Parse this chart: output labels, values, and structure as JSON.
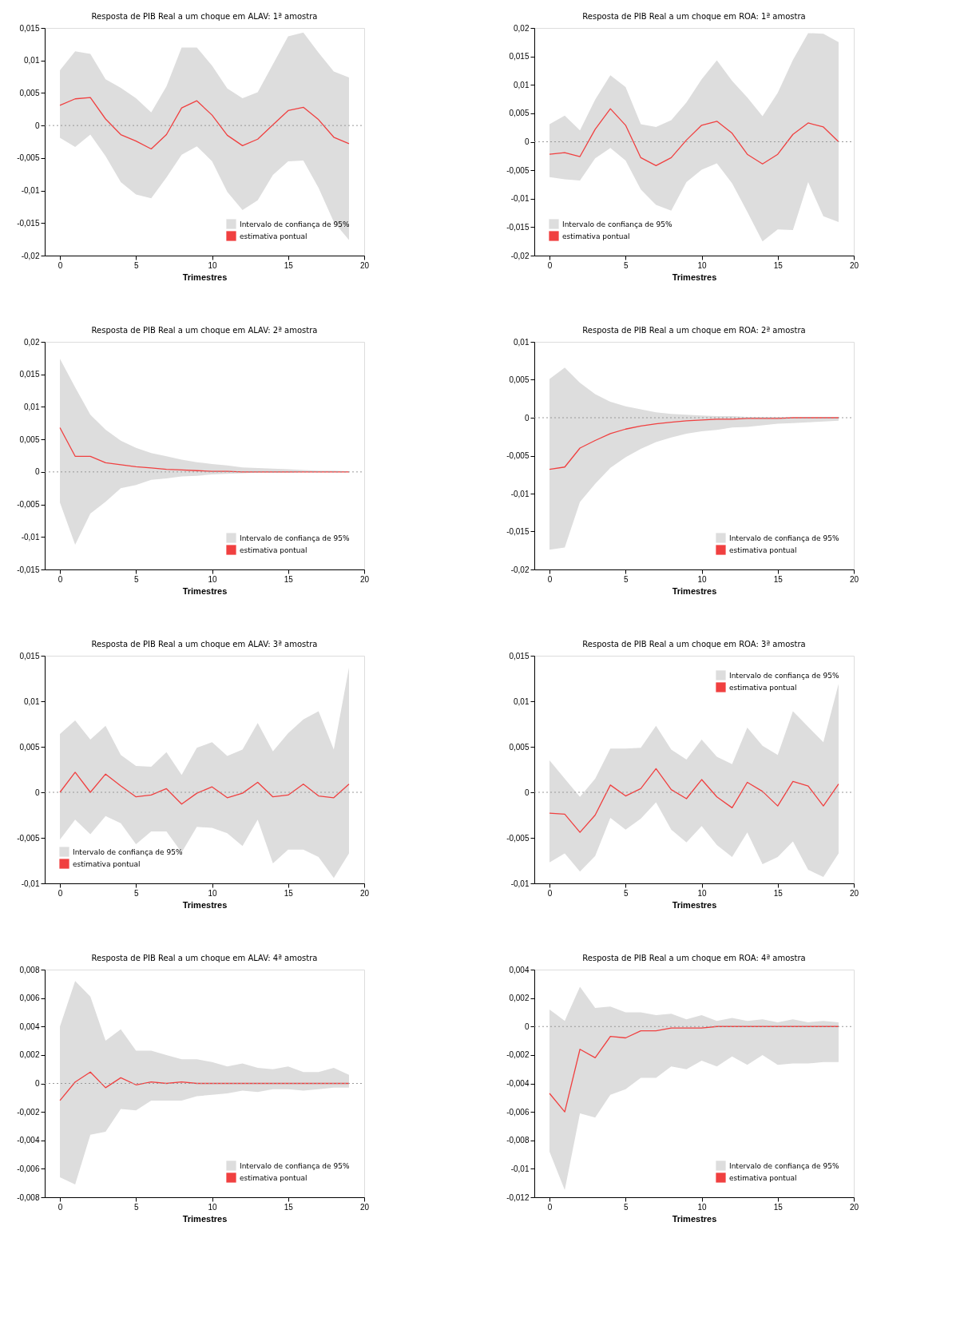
{
  "chart_data": [
    {
      "type": "line",
      "title": "Resposta de PIB Real a um choque em ALAV: 1ª amostra",
      "xlabel": "Trimestres",
      "legend": "bottom right",
      "grid": false,
      "x": [
        0,
        1,
        2,
        3,
        4,
        5,
        6,
        7,
        8,
        9,
        10,
        11,
        12,
        13,
        14,
        15,
        16,
        17,
        18,
        19
      ],
      "xlim": [
        -1,
        20
      ],
      "xticks": [
        0,
        5,
        10,
        15,
        20
      ],
      "ylim": [
        -0.02,
        0.015
      ],
      "yticks": [
        {
          "value": -0.02,
          "label": "-0,02"
        },
        {
          "value": -0.015,
          "label": "-0,015"
        },
        {
          "value": -0.01,
          "label": "-0,01"
        },
        {
          "value": -0.005,
          "label": "-0,005"
        },
        0,
        {
          "value": 0.005,
          "label": "0,005"
        },
        {
          "value": 0.01,
          "label": "0,01"
        },
        {
          "value": 0.015,
          "label": "0,015"
        }
      ],
      "ref_lines": [
        {
          "axis": "y",
          "value": 0,
          "color": "#999999",
          "line_style": "dotted"
        }
      ],
      "series": [
        {
          "name": "Intervalo de confiança de 95%",
          "type": "area",
          "color": "#dddddd",
          "values": [
            null,
            null,
            null,
            null,
            null,
            null,
            null,
            null,
            null,
            null,
            null,
            null,
            null,
            null,
            null,
            null,
            null,
            null,
            null,
            null
          ],
          "lower": [
            -0.0019,
            -0.0033,
            -0.0014,
            -0.0047,
            -0.0087,
            -0.0106,
            -0.0112,
            -0.008,
            -0.0045,
            -0.0032,
            -0.0055,
            -0.0102,
            -0.013,
            -0.0115,
            -0.0076,
            -0.0055,
            -0.0054,
            -0.0096,
            -0.0148,
            -0.0176
          ],
          "upper": [
            0.0085,
            0.0114,
            0.011,
            0.0071,
            0.0058,
            0.0042,
            0.002,
            0.006,
            0.012,
            0.012,
            0.0092,
            0.0057,
            0.0042,
            0.0051,
            0.0094,
            0.0137,
            0.0143,
            0.0112,
            0.0083,
            0.0074
          ]
        },
        {
          "name": "estimativa pontual",
          "color": "#f04040",
          "values": [
            0.0031,
            0.0041,
            0.0043,
            0.001,
            -0.0014,
            -0.0024,
            -0.0036,
            -0.0014,
            0.0027,
            0.0038,
            0.0016,
            -0.0015,
            -0.0031,
            -0.0021,
            0.0001,
            0.0023,
            0.0028,
            0.0009,
            -0.0018,
            -0.0028
          ]
        }
      ]
    },
    {
      "type": "line",
      "title": "Resposta de PIB Real a um choque em ROA: 1ª amostra",
      "xlabel": "Trimestres",
      "legend": "bottom left",
      "grid": false,
      "x": [
        0,
        1,
        2,
        3,
        4,
        5,
        6,
        7,
        8,
        9,
        10,
        11,
        12,
        13,
        14,
        15,
        16,
        17,
        18,
        19
      ],
      "xlim": [
        -1,
        20
      ],
      "xticks": [
        0,
        5,
        10,
        15,
        20
      ],
      "ylim": [
        -0.02,
        0.02
      ],
      "yticks": [
        {
          "value": -0.02,
          "label": "-0,02"
        },
        {
          "value": -0.015,
          "label": "-0,015"
        },
        {
          "value": -0.01,
          "label": "-0,01"
        },
        {
          "value": -0.005,
          "label": "-0,005"
        },
        0,
        {
          "value": 0.005,
          "label": "0,005"
        },
        {
          "value": 0.01,
          "label": "0,01"
        },
        {
          "value": 0.015,
          "label": "0,015"
        },
        {
          "value": 0.02,
          "label": "0,02"
        }
      ],
      "ref_lines": [
        {
          "axis": "y",
          "value": 0,
          "color": "#999999",
          "line_style": "dotted"
        }
      ],
      "series": [
        {
          "name": "Intervalo de confiança de 95%",
          "type": "area",
          "color": "#dddddd",
          "values": [
            null,
            null,
            null,
            null,
            null,
            null,
            null,
            null,
            null,
            null,
            null,
            null,
            null,
            null,
            null,
            null,
            null,
            null,
            null,
            null
          ],
          "lower": [
            -0.0062,
            -0.0066,
            -0.0068,
            -0.0029,
            -0.0011,
            -0.0033,
            -0.0084,
            -0.0111,
            -0.0121,
            -0.0071,
            -0.0049,
            -0.0038,
            -0.0073,
            -0.0123,
            -0.0175,
            -0.0154,
            -0.0155,
            -0.0071,
            -0.0131,
            -0.0141
          ],
          "upper": [
            0.0031,
            0.0046,
            0.002,
            0.0074,
            0.0117,
            0.0096,
            0.0031,
            0.0026,
            0.0038,
            0.0069,
            0.011,
            0.0143,
            0.0107,
            0.0078,
            0.0045,
            0.0086,
            0.0144,
            0.0191,
            0.019,
            0.0175
          ]
        },
        {
          "name": "estimativa pontual",
          "color": "#f04040",
          "values": [
            -0.0022,
            -0.0019,
            -0.0026,
            0.0022,
            0.0058,
            0.0029,
            -0.0028,
            -0.0042,
            -0.0028,
            0.0003,
            0.0029,
            0.0036,
            0.0015,
            -0.0022,
            -0.0039,
            -0.0022,
            0.0013,
            0.0033,
            0.0026,
            0
          ]
        }
      ]
    },
    {
      "type": "line",
      "title": "Resposta de PIB Real a um choque em ALAV: 2ª amostra",
      "xlabel": "Trimestres",
      "legend": "bottom right",
      "grid": false,
      "x": [
        0,
        1,
        2,
        3,
        4,
        5,
        6,
        7,
        8,
        9,
        10,
        11,
        12,
        13,
        14,
        15,
        16,
        17,
        18,
        19
      ],
      "xlim": [
        -1,
        20
      ],
      "xticks": [
        0,
        5,
        10,
        15,
        20
      ],
      "ylim": [
        -0.015,
        0.02
      ],
      "yticks": [
        {
          "value": -0.015,
          "label": "-0,015"
        },
        {
          "value": -0.01,
          "label": "-0,01"
        },
        {
          "value": -0.005,
          "label": "-0,005"
        },
        0,
        {
          "value": 0.005,
          "label": "0,005"
        },
        {
          "value": 0.01,
          "label": "0,01"
        },
        {
          "value": 0.015,
          "label": "0,015"
        },
        {
          "value": 0.02,
          "label": "0,02"
        }
      ],
      "ref_lines": [
        {
          "axis": "y",
          "value": 0,
          "color": "#999999",
          "line_style": "dotted"
        }
      ],
      "series": [
        {
          "name": "Intervalo de confiança de 95%",
          "type": "area",
          "color": "#dddddd",
          "values": [
            null,
            null,
            null,
            null,
            null,
            null,
            null,
            null,
            null,
            null,
            null,
            null,
            null,
            null,
            null,
            null,
            null,
            null,
            null,
            null
          ],
          "lower": [
            -0.0047,
            -0.0112,
            -0.0064,
            -0.0046,
            -0.0025,
            -0.002,
            -0.0012,
            -0.001,
            -0.0007,
            -0.0006,
            -0.0004,
            -0.0003,
            -0.0002,
            -0.0001,
            -0.0001,
            -0.0001,
            0,
            0,
            0,
            0
          ],
          "upper": [
            0.0174,
            0.013,
            0.0088,
            0.0065,
            0.0048,
            0.0037,
            0.0029,
            0.0024,
            0.0019,
            0.0015,
            0.0012,
            0.001,
            0.0007,
            0.0006,
            0.0005,
            0.0004,
            0.0003,
            0.0002,
            0.0002,
            0.0001
          ]
        },
        {
          "name": "estimativa pontual",
          "color": "#f04040",
          "values": [
            0.0068,
            0.0024,
            0.0024,
            0.0014,
            0.0011,
            0.0008,
            0.0006,
            0.0004,
            0.0003,
            0.0002,
            0.0001,
            0.0001,
            0,
            0,
            0,
            0,
            0,
            0,
            0,
            0
          ]
        }
      ]
    },
    {
      "type": "line",
      "title": "Resposta de PIB Real a um choque em ROA: 2ª amostra",
      "xlabel": "Trimestres",
      "legend": "bottom right",
      "grid": false,
      "x": [
        0,
        1,
        2,
        3,
        4,
        5,
        6,
        7,
        8,
        9,
        10,
        11,
        12,
        13,
        14,
        15,
        16,
        17,
        18,
        19
      ],
      "xlim": [
        -1,
        20
      ],
      "xticks": [
        0,
        5,
        10,
        15,
        20
      ],
      "ylim": [
        -0.02,
        0.01
      ],
      "yticks": [
        {
          "value": -0.02,
          "label": "-0,02"
        },
        {
          "value": -0.015,
          "label": "-0,015"
        },
        {
          "value": -0.01,
          "label": "-0,01"
        },
        {
          "value": -0.005,
          "label": "-0,005"
        },
        0,
        {
          "value": 0.005,
          "label": "0,005"
        },
        {
          "value": 0.01,
          "label": "0,01"
        }
      ],
      "ref_lines": [
        {
          "axis": "y",
          "value": 0,
          "color": "#999999",
          "line_style": "dotted"
        }
      ],
      "series": [
        {
          "name": "Intervalo de confiança de 95%",
          "type": "area",
          "color": "#dddddd",
          "values": [
            null,
            null,
            null,
            null,
            null,
            null,
            null,
            null,
            null,
            null,
            null,
            null,
            null,
            null,
            null,
            null,
            null,
            null,
            null,
            null
          ],
          "lower": [
            -0.0174,
            -0.0171,
            -0.0111,
            -0.0087,
            -0.0066,
            -0.0052,
            -0.0041,
            -0.0032,
            -0.0026,
            -0.0021,
            -0.0018,
            -0.0016,
            -0.0013,
            -0.0012,
            -0.001,
            -0.0008,
            -0.0007,
            -0.0006,
            -0.0005,
            -0.0004
          ],
          "upper": [
            0.0051,
            0.0066,
            0.0046,
            0.0031,
            0.0021,
            0.0015,
            0.0011,
            0.0007,
            0.0005,
            0.0004,
            0.0003,
            0.0002,
            0.0002,
            0.0001,
            0.0001,
            0.0001,
            0,
            0,
            0,
            0
          ]
        },
        {
          "name": "estimativa pontual",
          "color": "#f04040",
          "values": [
            -0.0068,
            -0.0065,
            -0.004,
            -0.003,
            -0.0021,
            -0.0015,
            -0.0011,
            -0.0008,
            -0.0006,
            -0.0004,
            -0.0003,
            -0.0002,
            -0.0002,
            -0.0001,
            -0.0001,
            -0.0001,
            0,
            0,
            0,
            0
          ]
        }
      ]
    },
    {
      "type": "line",
      "title": "Resposta de PIB Real a um choque em ALAV: 3ª amostra",
      "xlabel": "Trimestres",
      "legend": "bottom left",
      "grid": false,
      "x": [
        0,
        1,
        2,
        3,
        4,
        5,
        6,
        7,
        8,
        9,
        10,
        11,
        12,
        13,
        14,
        15,
        16,
        17,
        18,
        19
      ],
      "xlim": [
        -1,
        20
      ],
      "xticks": [
        0,
        5,
        10,
        15,
        20
      ],
      "ylim": [
        -0.01,
        0.015
      ],
      "yticks": [
        {
          "value": -0.01,
          "label": "-0,01"
        },
        {
          "value": -0.005,
          "label": "-0,005"
        },
        0,
        {
          "value": 0.005,
          "label": "0,005"
        },
        {
          "value": 0.01,
          "label": "0,01"
        },
        {
          "value": 0.015,
          "label": "0,015"
        }
      ],
      "ref_lines": [
        {
          "axis": "y",
          "value": 0,
          "color": "#999999",
          "line_style": "dotted"
        }
      ],
      "series": [
        {
          "name": "Intervalo de confiança de 95%",
          "type": "area",
          "color": "#dddddd",
          "values": [
            null,
            null,
            null,
            null,
            null,
            null,
            null,
            null,
            null,
            null,
            null,
            null,
            null,
            null,
            null,
            null,
            null,
            null,
            null,
            null
          ],
          "lower": [
            -0.0052,
            -0.003,
            -0.0046,
            -0.0026,
            -0.0034,
            -0.0057,
            -0.0043,
            -0.0043,
            -0.0066,
            -0.0038,
            -0.0039,
            -0.0045,
            -0.0059,
            -0.003,
            -0.0078,
            -0.0063,
            -0.0063,
            -0.0071,
            -0.0094,
            -0.0067
          ],
          "upper": [
            0.0064,
            0.0079,
            0.0058,
            0.0073,
            0.0041,
            0.0029,
            0.0028,
            0.0044,
            0.0019,
            0.0049,
            0.0055,
            0.004,
            0.0047,
            0.0076,
            0.0045,
            0.0065,
            0.008,
            0.0089,
            0.0047,
            0.0137
          ]
        },
        {
          "name": "estimativa pontual",
          "color": "#f04040",
          "values": [
            0,
            0.0022,
            0,
            0.002,
            0.0007,
            -0.0005,
            -0.0003,
            0.0004,
            -0.0013,
            -0.0001,
            0.0006,
            -0.0006,
            -0.0001,
            0.0011,
            -0.0005,
            -0.0003,
            0.0009,
            -0.0004,
            -0.0006,
            0.0009
          ]
        }
      ]
    },
    {
      "type": "line",
      "title": "Resposta de PIB Real a um choque em ROA: 3ª amostra",
      "xlabel": "Trimestres",
      "legend": "top right",
      "grid": false,
      "x": [
        0,
        1,
        2,
        3,
        4,
        5,
        6,
        7,
        8,
        9,
        10,
        11,
        12,
        13,
        14,
        15,
        16,
        17,
        18,
        19
      ],
      "xlim": [
        -1,
        20
      ],
      "xticks": [
        0,
        5,
        10,
        15,
        20
      ],
      "ylim": [
        -0.01,
        0.015
      ],
      "yticks": [
        {
          "value": -0.01,
          "label": "-0,01"
        },
        {
          "value": -0.005,
          "label": "-0,005"
        },
        0,
        {
          "value": 0.005,
          "label": "0,005"
        },
        {
          "value": 0.01,
          "label": "0,01"
        },
        {
          "value": 0.015,
          "label": "0,015"
        }
      ],
      "ref_lines": [
        {
          "axis": "y",
          "value": 0,
          "color": "#999999",
          "line_style": "dotted"
        }
      ],
      "series": [
        {
          "name": "Intervalo de confiança de 95%",
          "type": "area",
          "color": "#dddddd",
          "values": [
            null,
            null,
            null,
            null,
            null,
            null,
            null,
            null,
            null,
            null,
            null,
            null,
            null,
            null,
            null,
            null,
            null,
            null,
            null,
            null
          ],
          "lower": [
            -0.0077,
            -0.0067,
            -0.0087,
            -0.007,
            -0.0028,
            -0.0041,
            -0.0029,
            -0.0011,
            -0.0041,
            -0.0055,
            -0.0037,
            -0.0058,
            -0.0071,
            -0.0044,
            -0.0079,
            -0.0071,
            -0.0054,
            -0.0085,
            -0.0093,
            -0.0067
          ],
          "upper": [
            0.0035,
            0.0015,
            -0.0005,
            0.0015,
            0.0048,
            0.0048,
            0.0049,
            0.0073,
            0.0047,
            0.0036,
            0.0058,
            0.0039,
            0.0031,
            0.0071,
            0.0051,
            0.0041,
            0.0089,
            0.0072,
            0.0055,
            0.0119
          ]
        },
        {
          "name": "estimativa pontual",
          "color": "#f04040",
          "values": [
            -0.0023,
            -0.0024,
            -0.0044,
            -0.0025,
            0.0008,
            -0.0004,
            0.0004,
            0.0026,
            0.0003,
            -0.0007,
            0.0014,
            -0.0005,
            -0.0017,
            0.0011,
            0.0001,
            -0.0015,
            0.0012,
            0.0007,
            -0.0015,
            0.0009
          ]
        }
      ]
    },
    {
      "type": "line",
      "title": "Resposta de PIB Real a um choque em ALAV: 4ª amostra",
      "xlabel": "Trimestres",
      "legend": "bottom right",
      "grid": false,
      "x": [
        0,
        1,
        2,
        3,
        4,
        5,
        6,
        7,
        8,
        9,
        10,
        11,
        12,
        13,
        14,
        15,
        16,
        17,
        18,
        19
      ],
      "xlim": [
        -1,
        20
      ],
      "xticks": [
        0,
        5,
        10,
        15,
        20
      ],
      "ylim": [
        -0.008,
        0.008
      ],
      "yticks": [
        {
          "value": -0.008,
          "label": "-0,008"
        },
        {
          "value": -0.006,
          "label": "-0,006"
        },
        {
          "value": -0.004,
          "label": "-0,004"
        },
        {
          "value": -0.002,
          "label": "-0,002"
        },
        0,
        {
          "value": 0.002,
          "label": "0,002"
        },
        {
          "value": 0.004,
          "label": "0,004"
        },
        {
          "value": 0.006,
          "label": "0,006"
        },
        {
          "value": 0.008,
          "label": "0,008"
        }
      ],
      "ref_lines": [
        {
          "axis": "y",
          "value": 0,
          "color": "#999999",
          "line_style": "dotted"
        }
      ],
      "series": [
        {
          "name": "Intervalo de confiança de 95%",
          "type": "area",
          "color": "#dddddd",
          "values": [
            null,
            null,
            null,
            null,
            null,
            null,
            null,
            null,
            null,
            null,
            null,
            null,
            null,
            null,
            null,
            null,
            null,
            null,
            null,
            null
          ],
          "lower": [
            -0.0066,
            -0.0071,
            -0.0036,
            -0.0034,
            -0.0018,
            -0.0019,
            -0.0012,
            -0.0012,
            -0.0012,
            -0.0009,
            -0.0008,
            -0.0007,
            -0.0005,
            -0.0006,
            -0.0004,
            -0.0004,
            -0.0005,
            -0.0004,
            -0.0003,
            -0.0003
          ],
          "upper": [
            0.004,
            0.0072,
            0.0061,
            0.003,
            0.0038,
            0.0023,
            0.0023,
            0.002,
            0.0017,
            0.0017,
            0.0015,
            0.0012,
            0.0014,
            0.0011,
            0.001,
            0.0012,
            0.0008,
            0.0008,
            0.0011,
            0.0006
          ]
        },
        {
          "name": "estimativa pontual",
          "color": "#f04040",
          "values": [
            -0.0012,
            0.0001,
            0.0008,
            -0.0003,
            0.0004,
            -0.0001,
            0.0001,
            0,
            0.0001,
            0,
            0,
            0,
            0,
            0,
            0,
            0,
            0,
            0,
            0,
            0
          ]
        }
      ]
    },
    {
      "type": "line",
      "title": "Resposta de PIB Real a um choque em ROA: 4ª amostra",
      "xlabel": "Trimestres",
      "legend": "bottom right",
      "grid": false,
      "x": [
        0,
        1,
        2,
        3,
        4,
        5,
        6,
        7,
        8,
        9,
        10,
        11,
        12,
        13,
        14,
        15,
        16,
        17,
        18,
        19
      ],
      "xlim": [
        -1,
        20
      ],
      "xticks": [
        0,
        5,
        10,
        15,
        20
      ],
      "ylim": [
        -0.012,
        0.004
      ],
      "yticks": [
        {
          "value": -0.012,
          "label": "-0,012"
        },
        {
          "value": -0.01,
          "label": "-0,01"
        },
        {
          "value": -0.008,
          "label": "-0,008"
        },
        {
          "value": -0.006,
          "label": "-0,006"
        },
        {
          "value": -0.004,
          "label": "-0,004"
        },
        {
          "value": -0.002,
          "label": "-0,002"
        },
        0,
        {
          "value": 0.002,
          "label": "0,002"
        },
        {
          "value": 0.004,
          "label": "0,004"
        }
      ],
      "ref_lines": [
        {
          "axis": "y",
          "value": 0,
          "color": "#999999",
          "line_style": "dotted"
        }
      ],
      "series": [
        {
          "name": "Intervalo de confiança de 95%",
          "type": "area",
          "color": "#dddddd",
          "values": [
            null,
            null,
            null,
            null,
            null,
            null,
            null,
            null,
            null,
            null,
            null,
            null,
            null,
            null,
            null,
            null,
            null,
            null,
            null,
            null
          ],
          "lower": [
            -0.0088,
            -0.0115,
            -0.0061,
            -0.0064,
            -0.0048,
            -0.0044,
            -0.0036,
            -0.0036,
            -0.0028,
            -0.003,
            -0.0024,
            -0.0028,
            -0.0021,
            -0.0027,
            -0.002,
            -0.0027,
            -0.0026,
            -0.0026,
            -0.0025,
            -0.0025
          ],
          "upper": [
            0.0012,
            0.0004,
            0.0028,
            0.0013,
            0.0014,
            0.001,
            0.001,
            0.0008,
            0.0009,
            0.0005,
            0.0008,
            0.0004,
            0.0006,
            0.0004,
            0.0005,
            0.0003,
            0.0005,
            0.0003,
            0.0004,
            0.0003
          ]
        },
        {
          "name": "estimativa pontual",
          "color": "#f04040",
          "values": [
            -0.0047,
            -0.006,
            -0.0016,
            -0.0022,
            -0.0007,
            -0.0008,
            -0.0003,
            -0.0003,
            -0.0001,
            -0.0001,
            -0.0001,
            0,
            0,
            0,
            0,
            0,
            0,
            0,
            0,
            0
          ]
        }
      ]
    }
  ]
}
